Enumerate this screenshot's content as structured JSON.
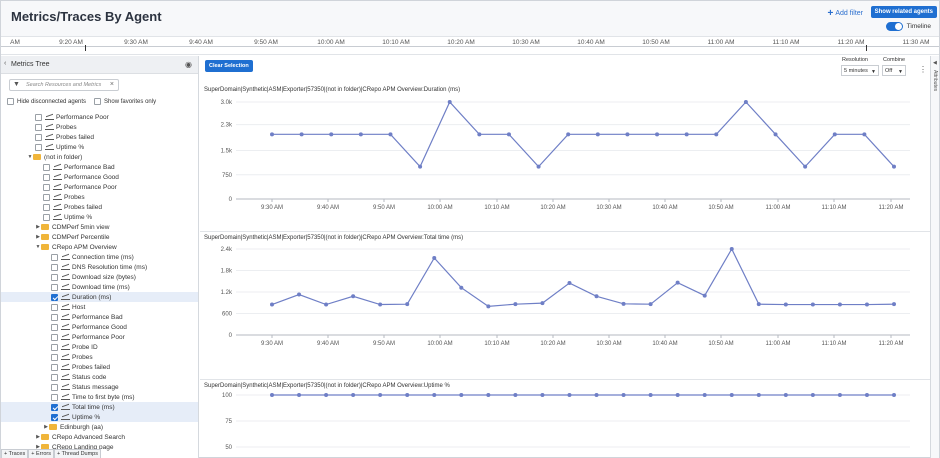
{
  "header": {
    "title": "Metrics/Traces By Agent",
    "add_filter": "Add filter",
    "show_related": "Show related agents",
    "timeline_label": "Timeline"
  },
  "timeline": {
    "labels": [
      "AM",
      "9:20 AM",
      "9:30 AM",
      "9:40 AM",
      "9:50 AM",
      "10:00 AM",
      "10:10 AM",
      "10:20 AM",
      "10:30 AM",
      "10:40 AM",
      "10:50 AM",
      "11:00 AM",
      "11:10 AM",
      "11:20 AM",
      "11:30 AM"
    ]
  },
  "sidebar": {
    "title": "Metrics Tree",
    "search_placeholder": "Search Resources and Metrics",
    "hide_disconnected": "Hide disconnected agents",
    "show_favorites": "Show favorites only",
    "tree": [
      {
        "label": "Performance Poor",
        "type": "metric",
        "depth": 3,
        "checked": false
      },
      {
        "label": "Probes",
        "type": "metric",
        "depth": 3,
        "checked": false
      },
      {
        "label": "Probes failed",
        "type": "metric",
        "depth": 3,
        "checked": false
      },
      {
        "label": "Uptime %",
        "type": "metric",
        "depth": 3,
        "checked": false
      },
      {
        "label": "(not in folder)",
        "type": "folder",
        "depth": 2,
        "expanded": true
      },
      {
        "label": "Performance Bad",
        "type": "metric",
        "depth": 4,
        "checked": false
      },
      {
        "label": "Performance Good",
        "type": "metric",
        "depth": 4,
        "checked": false
      },
      {
        "label": "Performance Poor",
        "type": "metric",
        "depth": 4,
        "checked": false
      },
      {
        "label": "Probes",
        "type": "metric",
        "depth": 4,
        "checked": false
      },
      {
        "label": "Probes failed",
        "type": "metric",
        "depth": 4,
        "checked": false
      },
      {
        "label": "Uptime %",
        "type": "metric",
        "depth": 4,
        "checked": false
      },
      {
        "label": "CDMPerf 5min view",
        "type": "folder",
        "depth": 3,
        "expanded": false
      },
      {
        "label": "CDMPerf Percentile",
        "type": "folder",
        "depth": 3,
        "expanded": false
      },
      {
        "label": "CRepo APM Overview",
        "type": "folder",
        "depth": 3,
        "expanded": true
      },
      {
        "label": "Connection time (ms)",
        "type": "metric",
        "depth": 5,
        "checked": false
      },
      {
        "label": "DNS Resolution time (ms)",
        "type": "metric",
        "depth": 5,
        "checked": false
      },
      {
        "label": "Download size (bytes)",
        "type": "metric",
        "depth": 5,
        "checked": false
      },
      {
        "label": "Download time (ms)",
        "type": "metric",
        "depth": 5,
        "checked": false
      },
      {
        "label": "Duration (ms)",
        "type": "metric",
        "depth": 5,
        "checked": true
      },
      {
        "label": "Host",
        "type": "metric",
        "depth": 5,
        "checked": false
      },
      {
        "label": "Performance Bad",
        "type": "metric",
        "depth": 5,
        "checked": false
      },
      {
        "label": "Performance Good",
        "type": "metric",
        "depth": 5,
        "checked": false
      },
      {
        "label": "Performance Poor",
        "type": "metric",
        "depth": 5,
        "checked": false
      },
      {
        "label": "Probe ID",
        "type": "metric",
        "depth": 5,
        "checked": false
      },
      {
        "label": "Probes",
        "type": "metric",
        "depth": 5,
        "checked": false
      },
      {
        "label": "Probes failed",
        "type": "metric",
        "depth": 5,
        "checked": false
      },
      {
        "label": "Status code",
        "type": "metric",
        "depth": 5,
        "checked": false
      },
      {
        "label": "Status message",
        "type": "metric",
        "depth": 5,
        "checked": false
      },
      {
        "label": "Time to first byte (ms)",
        "type": "metric",
        "depth": 5,
        "checked": false
      },
      {
        "label": "Total time (ms)",
        "type": "metric",
        "depth": 5,
        "checked": true
      },
      {
        "label": "Uptime %",
        "type": "metric",
        "depth": 5,
        "checked": true
      },
      {
        "label": "Edinburgh (aa)",
        "type": "folder",
        "depth": 4,
        "expanded": false
      },
      {
        "label": "CRepo Advanced Search",
        "type": "folder",
        "depth": 3,
        "expanded": false
      },
      {
        "label": "CRepo Landing page",
        "type": "folder",
        "depth": 3,
        "expanded": false
      }
    ],
    "bottom_tabs": [
      "+ Traces",
      "+ Errors",
      "+ Thread Dumps"
    ]
  },
  "main": {
    "clear_selection": "Clear Selection",
    "resolution_label": "Resolution",
    "resolution_value": "5 minutes",
    "combine_label": "Combine",
    "combine_value": "Off",
    "right_rail_label": "Attributes"
  },
  "colors": {
    "series": "#6f7fc6",
    "accent": "#1f6fd1"
  },
  "chart_data": [
    {
      "type": "line",
      "title": "SuperDomain|Synthetic|ASM|Exporter|57350|(not in folder)|CRepo APM Overview:Duration (ms)",
      "yticks": [
        "0",
        "750",
        "1.5k",
        "2.3k",
        "3.0k"
      ],
      "ylim": [
        0,
        3000
      ],
      "xticks": [
        "9:30 AM",
        "9:40 AM",
        "9:50 AM",
        "10:00 AM",
        "10:10 AM",
        "10:20 AM",
        "10:30 AM",
        "10:40 AM",
        "10:50 AM",
        "11:00 AM",
        "11:10 AM",
        "11:20 AM"
      ],
      "values": [
        2000,
        2000,
        2000,
        2000,
        2000,
        1000,
        3000,
        2000,
        2000,
        1000,
        2000,
        2000,
        2000,
        2000,
        2000,
        2000,
        3000,
        2000,
        1000,
        2000,
        2000,
        1000
      ]
    },
    {
      "type": "line",
      "title": "SuperDomain|Synthetic|ASM|Exporter|57350|(not in folder)|CRepo APM Overview:Total time (ms)",
      "yticks": [
        "0",
        "600",
        "1.2k",
        "1.8k",
        "2.4k"
      ],
      "ylim": [
        0,
        2400
      ],
      "xticks": [
        "9:30 AM",
        "9:40 AM",
        "9:50 AM",
        "10:00 AM",
        "10:10 AM",
        "10:20 AM",
        "10:30 AM",
        "10:40 AM",
        "10:50 AM",
        "11:00 AM",
        "11:10 AM",
        "11:20 AM"
      ],
      "values": [
        850,
        1130,
        850,
        1080,
        850,
        860,
        2150,
        1320,
        800,
        860,
        890,
        1450,
        1080,
        870,
        860,
        1460,
        1100,
        2400,
        860,
        850,
        850,
        850,
        850,
        860
      ]
    },
    {
      "type": "line",
      "title": "SuperDomain|Synthetic|ASM|Exporter|57350|(not in folder)|CRepo APM Overview:Uptime %",
      "yticks": [
        "50",
        "75",
        "100"
      ],
      "ylim": [
        0,
        100
      ],
      "values": [
        100,
        100,
        100,
        100,
        100,
        100,
        100,
        100,
        100,
        100,
        100,
        100,
        100,
        100,
        100,
        100,
        100,
        100,
        100,
        100,
        100,
        100,
        100,
        100
      ]
    }
  ]
}
